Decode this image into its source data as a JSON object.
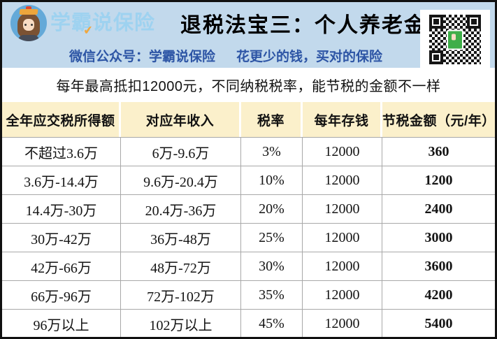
{
  "header": {
    "logo_text": "学霸说保险",
    "title": "退税法宝三：个人养老金",
    "subtitle_left": "微信公众号：学霸说保险",
    "subtitle_right": "花更少的钱，买对的保险"
  },
  "note": "每年最高抵扣12000元，不同纳税税率，能节税的金额不一样",
  "table": {
    "headers": [
      "全年应交税所得额",
      "对应年收入",
      "税率",
      "每年存钱",
      "节税金额（元/年）"
    ],
    "rows": [
      [
        "不超过3.6万",
        "6万-9.6万",
        "3%",
        "12000",
        "360"
      ],
      [
        "3.6万-14.4万",
        "9.6万-20.4万",
        "10%",
        "12000",
        "1200"
      ],
      [
        "14.4万-30万",
        "20.4万-36万",
        "20%",
        "12000",
        "2400"
      ],
      [
        "30万-42万",
        "36万-48万",
        "25%",
        "12000",
        "3000"
      ],
      [
        "42万-66万",
        "48万-72万",
        "30%",
        "12000",
        "3600"
      ],
      [
        "66万-96万",
        "72万-102万",
        "35%",
        "12000",
        "4200"
      ],
      [
        "96万以上",
        "102万以上",
        "45%",
        "12000",
        "5400"
      ]
    ]
  },
  "colors": {
    "banner_blue": "#c2d9ec",
    "logo_text_blue": "#9ed2f0",
    "subtitle_blue": "#2d55a5",
    "header_yellow": "#fbf0cb",
    "qr_center_green": "#3fae49",
    "check_orange": "#f2a73d"
  }
}
